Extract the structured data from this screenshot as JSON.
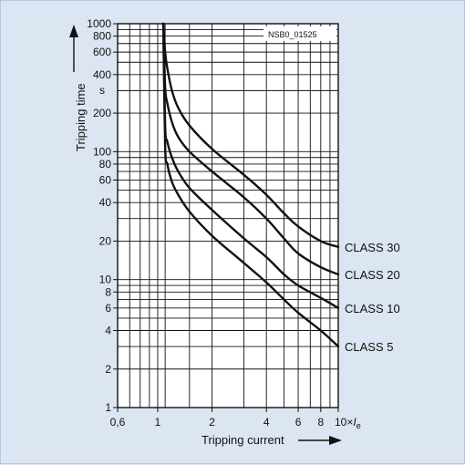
{
  "chart_data": {
    "type": "line",
    "title": "",
    "xlabel": "Tripping current",
    "xlabel_unit_suffix": "× Ie",
    "ylabel": "Tripping time",
    "yunit": "s",
    "figure_code": "NSB0_01525",
    "x_scale": "log",
    "y_scale": "log",
    "xlim": [
      0.6,
      10
    ],
    "ylim": [
      1,
      1000
    ],
    "grid": true,
    "legend": "labels at line ends (right)",
    "x_tick_labels": [
      {
        "value": 0.6,
        "label": "0,6"
      },
      {
        "value": 1,
        "label": "1"
      },
      {
        "value": 2,
        "label": "2"
      },
      {
        "value": 4,
        "label": "4"
      },
      {
        "value": 6,
        "label": "6"
      },
      {
        "value": 8,
        "label": "8"
      },
      {
        "value": 10,
        "label": "10×"
      }
    ],
    "y_tick_labels": [
      {
        "value": 1,
        "label": "1"
      },
      {
        "value": 2,
        "label": "2"
      },
      {
        "value": 4,
        "label": "4"
      },
      {
        "value": 6,
        "label": "6"
      },
      {
        "value": 8,
        "label": "8"
      },
      {
        "value": 10,
        "label": "10"
      },
      {
        "value": 20,
        "label": "20"
      },
      {
        "value": 40,
        "label": "40"
      },
      {
        "value": 60,
        "label": "60"
      },
      {
        "value": 80,
        "label": "80"
      },
      {
        "value": 100,
        "label": "100"
      },
      {
        "value": 200,
        "label": "200"
      },
      {
        "value": 400,
        "label": "400"
      },
      {
        "value": 600,
        "label": "600"
      },
      {
        "value": 800,
        "label": "800"
      },
      {
        "value": 1000,
        "label": "1000"
      }
    ],
    "x_gridlines": [
      0.6,
      0.7,
      0.8,
      0.9,
      1,
      1.1,
      1.5,
      2,
      3,
      4,
      5,
      6,
      7,
      8,
      9,
      10
    ],
    "y_gridlines": [
      1,
      2,
      3,
      4,
      5,
      6,
      7,
      8,
      9,
      10,
      20,
      30,
      40,
      50,
      60,
      70,
      80,
      90,
      100,
      200,
      300,
      400,
      500,
      600,
      700,
      800,
      900,
      1000
    ],
    "series": [
      {
        "name": "CLASS 30",
        "points": [
          [
            1.1,
            600
          ],
          [
            1.13,
            450
          ],
          [
            1.2,
            300
          ],
          [
            1.3,
            220
          ],
          [
            1.5,
            160
          ],
          [
            2,
            105
          ],
          [
            3,
            66
          ],
          [
            4,
            46
          ],
          [
            5,
            33
          ],
          [
            6,
            26
          ],
          [
            8,
            20
          ],
          [
            10,
            18
          ]
        ]
      },
      {
        "name": "CLASS 20",
        "points": [
          [
            1.1,
            320
          ],
          [
            1.13,
            240
          ],
          [
            1.2,
            170
          ],
          [
            1.3,
            130
          ],
          [
            1.5,
            100
          ],
          [
            2,
            70
          ],
          [
            3,
            44
          ],
          [
            4,
            30
          ],
          [
            5,
            21
          ],
          [
            6,
            16
          ],
          [
            8,
            12.5
          ],
          [
            10,
            11
          ]
        ]
      },
      {
        "name": "CLASS 10",
        "points": [
          [
            1.1,
            160
          ],
          [
            1.13,
            120
          ],
          [
            1.2,
            90
          ],
          [
            1.3,
            70
          ],
          [
            1.5,
            52
          ],
          [
            2,
            35
          ],
          [
            3,
            21
          ],
          [
            4,
            15
          ],
          [
            5,
            11
          ],
          [
            6,
            9
          ],
          [
            8,
            7.2
          ],
          [
            10,
            6
          ]
        ]
      },
      {
        "name": "CLASS 5",
        "points": [
          [
            1.1,
            110
          ],
          [
            1.13,
            80
          ],
          [
            1.2,
            58
          ],
          [
            1.3,
            46
          ],
          [
            1.5,
            34
          ],
          [
            2,
            22
          ],
          [
            3,
            13.5
          ],
          [
            4,
            9.5
          ],
          [
            5,
            7
          ],
          [
            6,
            5.5
          ],
          [
            8,
            4
          ],
          [
            10,
            3
          ]
        ]
      }
    ]
  }
}
